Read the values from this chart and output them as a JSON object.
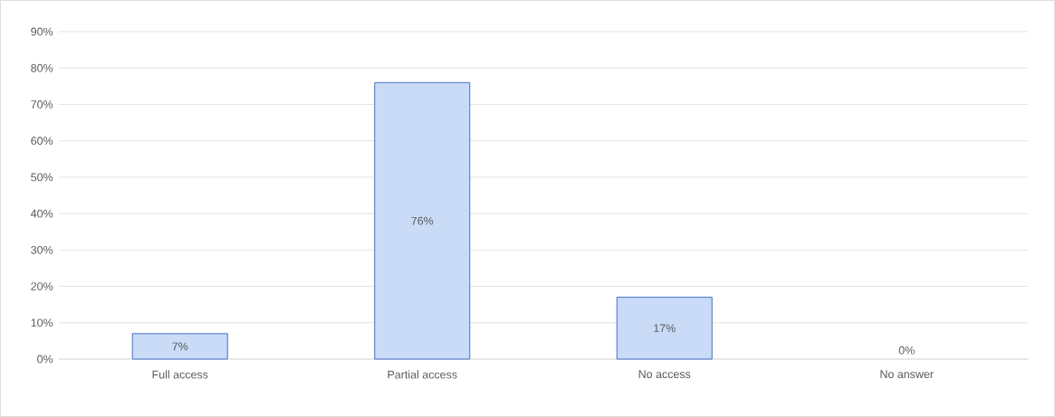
{
  "chart_data": {
    "type": "bar",
    "categories": [
      "Full access",
      "Partial access",
      "No access",
      "No answer"
    ],
    "values": [
      7,
      76,
      17,
      0
    ],
    "value_labels": [
      "7%",
      "76%",
      "17%",
      "0%"
    ],
    "color": "#c9dbf7",
    "ylim": [
      0,
      90
    ],
    "yticks": [
      {
        "value": 0,
        "label": "0%"
      },
      {
        "value": 10,
        "label": "10%"
      },
      {
        "value": 20,
        "label": "20%"
      },
      {
        "value": 30,
        "label": "30%"
      },
      {
        "value": 40,
        "label": "40%"
      },
      {
        "value": 50,
        "label": "50%"
      },
      {
        "value": 60,
        "label": "60%"
      },
      {
        "value": 70,
        "label": "70%"
      },
      {
        "value": 80,
        "label": "80%"
      },
      {
        "value": 90,
        "label": "90%"
      }
    ],
    "grid": "y"
  }
}
